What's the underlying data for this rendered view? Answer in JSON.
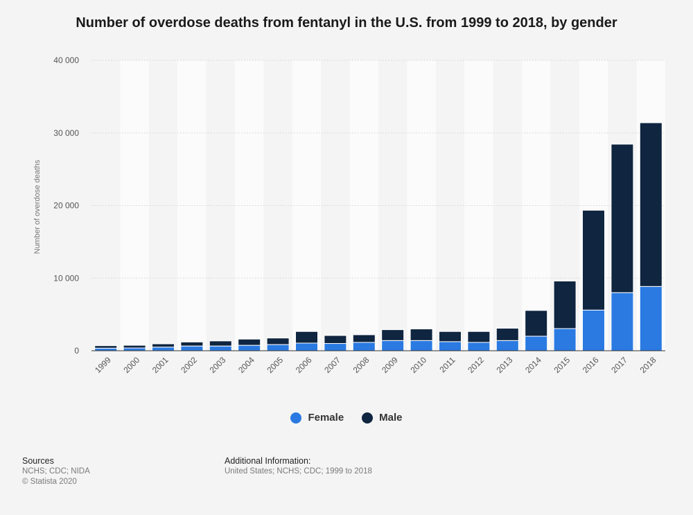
{
  "chart_data": {
    "type": "bar",
    "stacked": true,
    "title": "Number of overdose deaths from fentanyl in the U.S. from 1999 to 2018, by gender",
    "xlabel": "",
    "ylabel": "Number of overdose deaths",
    "ylim": [
      0,
      40000
    ],
    "yticks": [
      0,
      10000,
      20000,
      30000,
      40000
    ],
    "ytick_labels": [
      "0",
      "10 000",
      "20 000",
      "30 000",
      "40 000"
    ],
    "categories": [
      "1999",
      "2000",
      "2001",
      "2002",
      "2003",
      "2004",
      "2005",
      "2006",
      "2007",
      "2008",
      "2009",
      "2010",
      "2011",
      "2012",
      "2013",
      "2014",
      "2015",
      "2016",
      "2017",
      "2018"
    ],
    "series": [
      {
        "name": "Female",
        "color": "#2a7ae2",
        "values": [
          350,
          380,
          500,
          650,
          650,
          750,
          850,
          1050,
          1000,
          1150,
          1400,
          1400,
          1250,
          1150,
          1400,
          2000,
          3050,
          5600,
          8000,
          8850
        ]
      },
      {
        "name": "Male",
        "color": "#0f2540",
        "values": [
          350,
          370,
          450,
          550,
          700,
          850,
          900,
          1600,
          1100,
          1050,
          1500,
          1600,
          1400,
          1500,
          1700,
          3550,
          6550,
          13750,
          20450,
          22550
        ]
      }
    ],
    "grid": true,
    "legend": "bottom"
  },
  "sources": {
    "heading": "Sources",
    "lines": [
      "NCHS; CDC; NIDA",
      "© Statista 2020"
    ]
  },
  "additional_info": {
    "heading": "Additional Information:",
    "text": "United States; NCHS; CDC; 1999 to 2018"
  }
}
